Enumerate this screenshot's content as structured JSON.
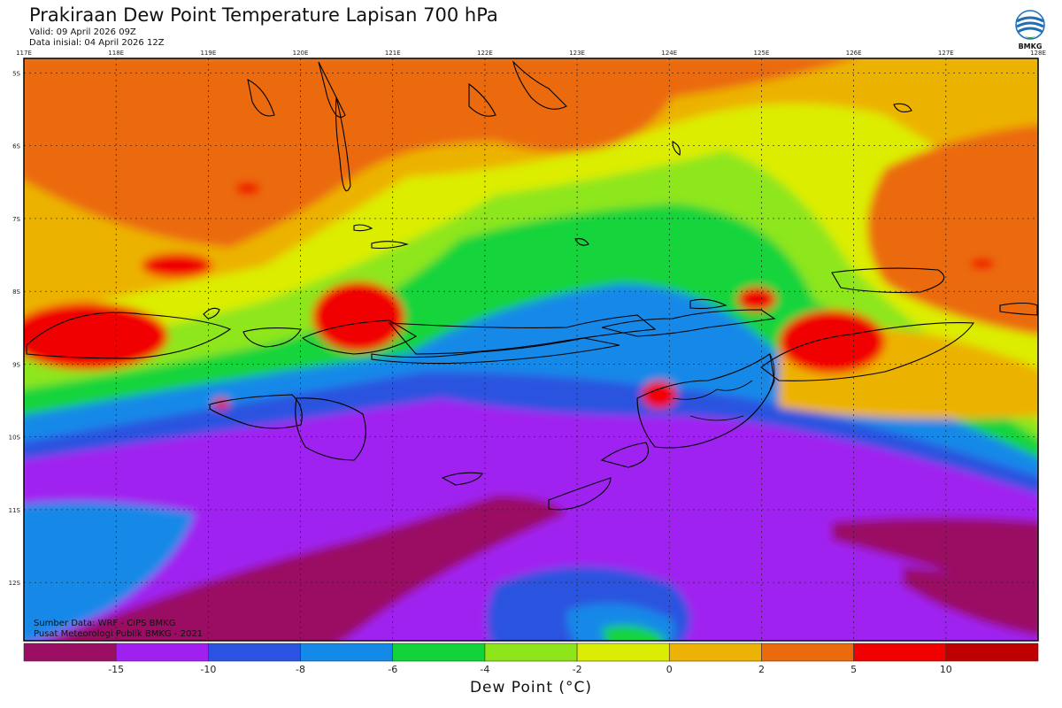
{
  "header": {
    "title": "Prakiraan Dew Point Temperature Lapisan 700 hPa",
    "valid": "Valid: 09 April 2026 09Z",
    "init": "Data inisial: 04 April 2026 12Z"
  },
  "logo": {
    "text": "BMKG",
    "icon": "bmkg-logo-icon"
  },
  "map": {
    "lon_range": [
      117,
      128
    ],
    "lat_range": [
      -12.8,
      -4.8
    ],
    "lon_ticks": [
      "117E",
      "118E",
      "119E",
      "120E",
      "121E",
      "122E",
      "123E",
      "124E",
      "125E",
      "126E",
      "127E",
      "128E"
    ],
    "lat_ticks": [
      "5S",
      "6S",
      "7S",
      "8S",
      "9S",
      "10S",
      "11S",
      "12S"
    ],
    "gridlines": true,
    "credit_lines": [
      "Sumber Data: WRF - CIPS BMKG",
      "Pusat Meteorologi Publik BMKG - 2021"
    ]
  },
  "colorbar": {
    "title": "Dew Point (°C)",
    "tick_labels": [
      "-15",
      "-10",
      "-8",
      "-6",
      "-4",
      "-2",
      "0",
      "2",
      "5",
      "10"
    ],
    "colors": [
      "#9a0e63",
      "#a020f0",
      "#2b52e0",
      "#1589e8",
      "#12d43a",
      "#8ee61a",
      "#dced05",
      "#ecb205",
      "#eb6a0b",
      "#f00000",
      "#bf0000"
    ]
  }
}
